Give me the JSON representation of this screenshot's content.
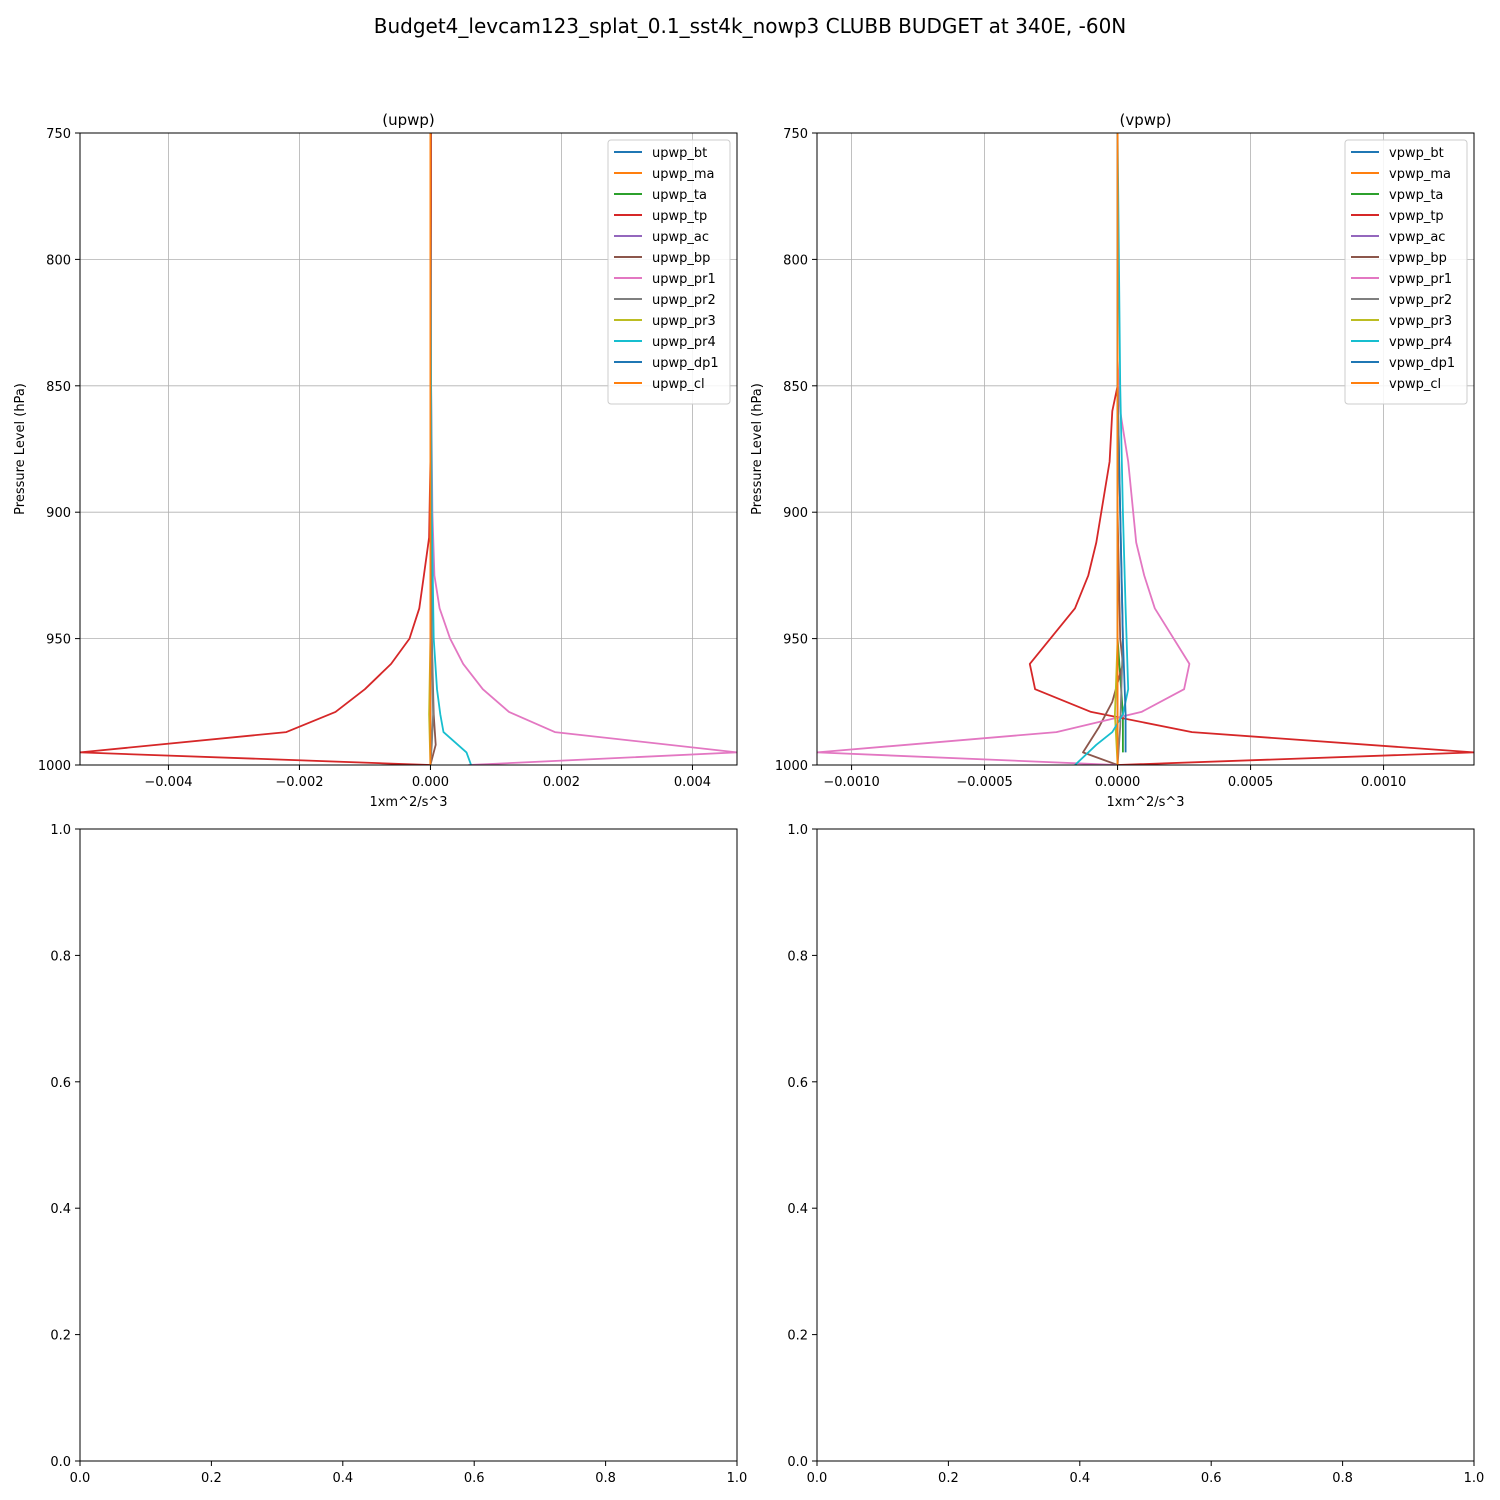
{
  "figure": {
    "title": "Budget4_levcam123_splat_0.1_sst4k_nowp3 CLUBB BUDGET at 340E, -60N"
  },
  "chart_data": [
    {
      "type": "line",
      "title": "(upwp)",
      "xlabel": "1xm^2/s^3",
      "ylabel": "Pressure Level (hPa)",
      "xlim": [
        -0.00535,
        0.00468
      ],
      "ylim": [
        1000,
        750
      ],
      "y_inverted": true,
      "xticks": [
        -0.004,
        -0.002,
        0.0,
        0.002,
        0.004
      ],
      "xtick_labels": [
        "−0.004",
        "−0.002",
        "0.000",
        "0.002",
        "0.004"
      ],
      "yticks": [
        750,
        800,
        850,
        900,
        950,
        1000
      ],
      "ytick_labels": [
        "750",
        "800",
        "850",
        "900",
        "950",
        "1000"
      ],
      "grid": true,
      "legend_position": "upper-right",
      "series": [
        {
          "name": "upwp_bt",
          "color": "#1f77b4",
          "x": [
            0,
            0,
            0,
            0,
            0,
            0,
            0,
            0,
            0
          ],
          "y": [
            750,
            850,
            900,
            950,
            975,
            988,
            995,
            1000,
            1000
          ]
        },
        {
          "name": "upwp_ma",
          "color": "#ff7f0e",
          "x": [
            0,
            0,
            0,
            0,
            0,
            0,
            0
          ],
          "y": [
            750,
            850,
            900,
            950,
            988,
            995,
            1000
          ]
        },
        {
          "name": "upwp_ta",
          "color": "#2ca02c",
          "x": [
            0,
            0,
            0,
            0,
            0,
            0,
            0
          ],
          "y": [
            750,
            850,
            900,
            950,
            988,
            995,
            1000
          ]
        },
        {
          "name": "upwp_tp",
          "color": "#d62728",
          "x": [
            1e-05,
            1e-05,
            0.0,
            -2e-05,
            -0.0001,
            -0.00017,
            -0.00032,
            -0.0006,
            -0.001,
            -0.00145,
            -0.0022,
            -0.00535,
            0.0
          ],
          "y": [
            750,
            850,
            880,
            910,
            925,
            938,
            950,
            960,
            970,
            979,
            987,
            995,
            1000
          ]
        },
        {
          "name": "upwp_ac",
          "color": "#9467bd",
          "x": [
            0,
            0,
            0,
            0,
            0,
            0,
            0
          ],
          "y": [
            750,
            850,
            900,
            950,
            988,
            995,
            1000
          ]
        },
        {
          "name": "upwp_bp",
          "color": "#8c564b",
          "x": [
            0,
            0,
            0,
            2e-05,
            5e-05,
            8e-05,
            0.0
          ],
          "y": [
            750,
            850,
            900,
            950,
            980,
            992,
            1000
          ]
        },
        {
          "name": "upwp_pr1",
          "color": "#e377c2",
          "x": [
            0.0,
            1e-05,
            3e-05,
            6e-05,
            0.00014,
            0.0003,
            0.0005,
            0.0008,
            0.0012,
            0.0019,
            0.00468,
            0.00058
          ],
          "y": [
            750,
            850,
            900,
            925,
            938,
            950,
            960,
            970,
            979,
            987,
            995,
            1000
          ]
        },
        {
          "name": "upwp_pr2",
          "color": "#7f7f7f",
          "x": [
            0,
            0,
            1e-05,
            2e-05,
            4e-05,
            2e-05,
            0.0
          ],
          "y": [
            750,
            850,
            900,
            950,
            980,
            992,
            1000
          ]
        },
        {
          "name": "upwp_pr3",
          "color": "#bcbd22",
          "x": [
            0,
            0,
            0,
            0,
            -2e-05,
            0.0
          ],
          "y": [
            750,
            850,
            900,
            950,
            980,
            1000
          ]
        },
        {
          "name": "upwp_pr4",
          "color": "#17becf",
          "x": [
            0.0,
            1e-05,
            2e-05,
            5e-05,
            0.0001,
            0.00015,
            0.0002,
            0.00055,
            0.00062
          ],
          "y": [
            750,
            850,
            900,
            950,
            970,
            980,
            987,
            995,
            1000
          ]
        },
        {
          "name": "upwp_dp1",
          "color": "#1f77b4",
          "x": [
            0,
            0,
            0,
            0,
            0
          ],
          "y": [
            750,
            850,
            900,
            950,
            1000
          ]
        },
        {
          "name": "upwp_cl",
          "color": "#ff7f0e",
          "x": [
            0.0,
            0.0,
            0.0,
            0.0,
            0.0
          ],
          "y": [
            750,
            850,
            900,
            950,
            1000
          ]
        }
      ]
    },
    {
      "type": "line",
      "title": "(vpwp)",
      "xlabel": "1xm^2/s^3",
      "ylabel": "Pressure Level (hPa)",
      "xlim": [
        -0.00113,
        0.00134
      ],
      "ylim": [
        1000,
        750
      ],
      "y_inverted": true,
      "xticks": [
        -0.001,
        -0.0005,
        0.0,
        0.0005,
        0.001
      ],
      "xtick_labels": [
        "−0.0010",
        "−0.0005",
        "0.0000",
        "0.0005",
        "0.0010"
      ],
      "yticks": [
        750,
        800,
        850,
        900,
        950,
        1000
      ],
      "ytick_labels": [
        "750",
        "800",
        "850",
        "900",
        "950",
        "1000"
      ],
      "grid": true,
      "legend_position": "upper-right",
      "series": [
        {
          "name": "vpwp_bt",
          "color": "#1f77b4",
          "x": [
            0,
            0,
            0,
            0,
            0,
            0
          ],
          "y": [
            750,
            850,
            900,
            950,
            990,
            1000
          ]
        },
        {
          "name": "vpwp_ma",
          "color": "#ff7f0e",
          "x": [
            0,
            0,
            0,
            0,
            0,
            0
          ],
          "y": [
            750,
            850,
            900,
            950,
            990,
            1000
          ]
        },
        {
          "name": "vpwp_ta",
          "color": "#2ca02c",
          "x": [
            0,
            0,
            0,
            0,
            2e-05,
            2e-05
          ],
          "y": [
            750,
            850,
            900,
            950,
            980,
            995
          ]
        },
        {
          "name": "vpwp_tp",
          "color": "#d62728",
          "x": [
            0.0,
            0.0,
            -2e-05,
            -3e-05,
            -8e-05,
            -0.00011,
            -0.00016,
            -0.00033,
            -0.00031,
            -0.0001,
            0.00028,
            0.00134,
            0.0
          ],
          "y": [
            750,
            850,
            860,
            880,
            912,
            925,
            938,
            960,
            970,
            979,
            987,
            995,
            1000
          ]
        },
        {
          "name": "vpwp_ac",
          "color": "#9467bd",
          "x": [
            0,
            0,
            0,
            0,
            0
          ],
          "y": [
            750,
            850,
            900,
            950,
            1000
          ]
        },
        {
          "name": "vpwp_bp",
          "color": "#8c564b",
          "x": [
            0.0,
            0.0,
            0.0,
            1e-05,
            2e-05,
            -2e-05,
            -7e-05,
            -0.00013,
            0.0
          ],
          "y": [
            750,
            850,
            900,
            950,
            960,
            975,
            985,
            995,
            1000
          ]
        },
        {
          "name": "vpwp_pr1",
          "color": "#e377c2",
          "x": [
            0.0,
            0.0,
            1e-05,
            4e-05,
            7e-05,
            0.0001,
            0.00014,
            0.00027,
            0.00025,
            9e-05,
            -0.00023,
            -0.00113,
            0.0
          ],
          "y": [
            750,
            840,
            860,
            880,
            912,
            925,
            938,
            960,
            970,
            979,
            987,
            995,
            1000
          ]
        },
        {
          "name": "vpwp_pr2",
          "color": "#7f7f7f",
          "x": [
            0,
            0,
            1e-05,
            2e-05,
            1e-05,
            0.0
          ],
          "y": [
            750,
            850,
            900,
            950,
            985,
            1000
          ]
        },
        {
          "name": "vpwp_pr3",
          "color": "#bcbd22",
          "x": [
            0,
            0,
            0,
            0,
            -1e-05,
            0.0
          ],
          "y": [
            750,
            850,
            900,
            950,
            980,
            1000
          ]
        },
        {
          "name": "vpwp_pr4",
          "color": "#17becf",
          "x": [
            0.0,
            1e-05,
            2e-05,
            3e-05,
            4e-05,
            2e-05,
            -2e-05,
            -8e-05,
            -0.00016
          ],
          "y": [
            750,
            850,
            900,
            938,
            970,
            980,
            987,
            992,
            1000
          ]
        },
        {
          "name": "vpwp_dp1",
          "color": "#1f77b4",
          "x": [
            0,
            0,
            1e-05,
            2e-05,
            3e-05,
            3e-05
          ],
          "y": [
            750,
            850,
            900,
            950,
            980,
            995
          ]
        },
        {
          "name": "vpwp_cl",
          "color": "#ff7f0e",
          "x": [
            0,
            0,
            0,
            0,
            0,
            0
          ],
          "y": [
            750,
            850,
            900,
            950,
            990,
            1000
          ]
        }
      ]
    },
    {
      "type": "line",
      "title": "",
      "xlabel": "",
      "ylabel": "",
      "xlim": [
        0.0,
        1.0
      ],
      "ylim": [
        0.0,
        1.0
      ],
      "xticks": [
        0.0,
        0.2,
        0.4,
        0.6,
        0.8,
        1.0
      ],
      "xtick_labels": [
        "0.0",
        "0.2",
        "0.4",
        "0.6",
        "0.8",
        "1.0"
      ],
      "yticks": [
        0.0,
        0.2,
        0.4,
        0.6,
        0.8,
        1.0
      ],
      "ytick_labels": [
        "0.0",
        "0.2",
        "0.4",
        "0.6",
        "0.8",
        "1.0"
      ],
      "grid": false,
      "series": []
    },
    {
      "type": "line",
      "title": "",
      "xlabel": "",
      "ylabel": "",
      "xlim": [
        0.0,
        1.0
      ],
      "ylim": [
        0.0,
        1.0
      ],
      "xticks": [
        0.0,
        0.2,
        0.4,
        0.6,
        0.8,
        1.0
      ],
      "xtick_labels": [
        "0.0",
        "0.2",
        "0.4",
        "0.6",
        "0.8",
        "1.0"
      ],
      "yticks": [
        0.0,
        0.2,
        0.4,
        0.6,
        0.8,
        1.0
      ],
      "ytick_labels": [
        "0.0",
        "0.2",
        "0.4",
        "0.6",
        "0.8",
        "1.0"
      ],
      "grid": false,
      "series": []
    }
  ]
}
